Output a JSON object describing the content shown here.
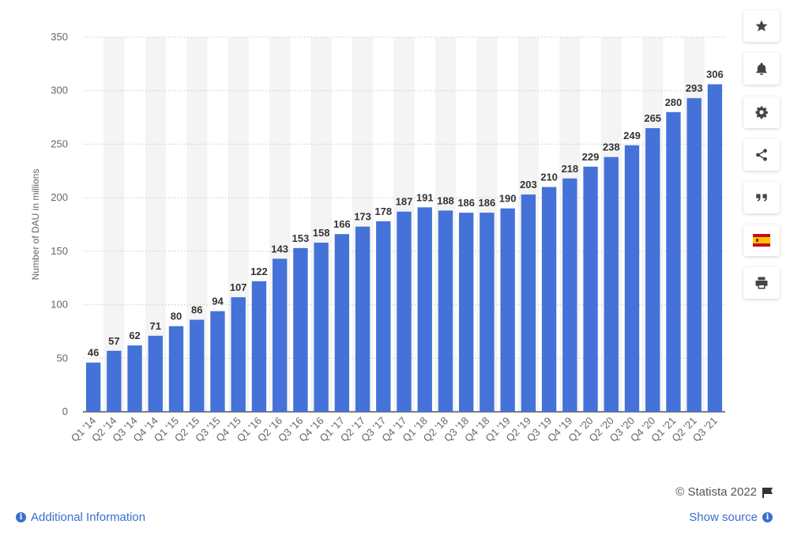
{
  "chart_data": {
    "type": "bar",
    "title": "",
    "xlabel": "",
    "ylabel": "Number of DAU in millions",
    "ylim": [
      0,
      350
    ],
    "yticks": [
      0,
      50,
      100,
      150,
      200,
      250,
      300,
      350
    ],
    "grid": true,
    "categories": [
      "Q1 '14",
      "Q2 '14",
      "Q3 '14",
      "Q4 '14",
      "Q1 '15",
      "Q2 '15",
      "Q3 '15",
      "Q4 '15",
      "Q1 '16",
      "Q2 '16",
      "Q3 '16",
      "Q4 '16",
      "Q1 '17",
      "Q2 '17",
      "Q3 '17",
      "Q4 '17",
      "Q1 '18",
      "Q2 '18",
      "Q3 '18",
      "Q4 '18",
      "Q1 '19",
      "Q2 '19",
      "Q3 '19",
      "Q4 '19",
      "Q1 '20",
      "Q2 '20",
      "Q3 '20",
      "Q4 '20",
      "Q1 '21",
      "Q2 '21",
      "Q3 '21"
    ],
    "values": [
      46,
      57,
      62,
      71,
      80,
      86,
      94,
      107,
      122,
      143,
      153,
      158,
      166,
      173,
      178,
      187,
      191,
      188,
      186,
      186,
      190,
      203,
      210,
      218,
      229,
      238,
      249,
      265,
      280,
      293,
      306
    ],
    "bar_color": "#4472d8"
  },
  "sidebar": {
    "buttons": [
      {
        "icon": "star-icon"
      },
      {
        "icon": "bell-icon"
      },
      {
        "icon": "gear-icon"
      },
      {
        "icon": "share-icon"
      },
      {
        "icon": "quote-icon"
      },
      {
        "icon": "spain-flag-icon"
      },
      {
        "icon": "print-icon"
      }
    ]
  },
  "footer": {
    "credit": "© Statista 2022",
    "additional_info": "Additional Information",
    "show_source": "Show source"
  },
  "colors": {
    "accent": "#3a6fcf",
    "band": "#f4f4f4"
  }
}
